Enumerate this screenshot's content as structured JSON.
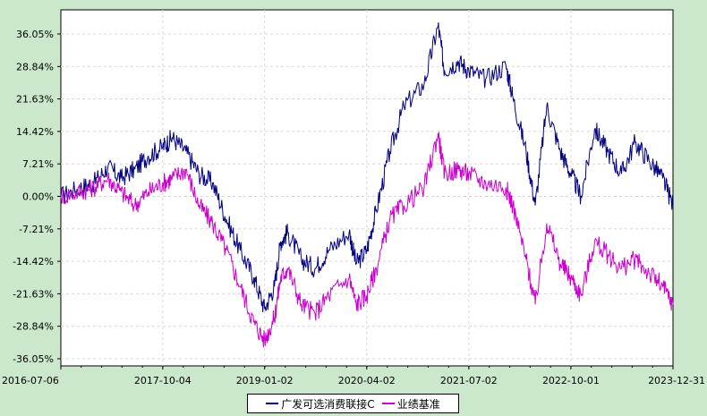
{
  "chart_data": {
    "type": "line",
    "title": "",
    "xlabel": "",
    "ylabel": "",
    "x_ticks": [
      "2016-07-06",
      "2017-10-04",
      "2019-01-02",
      "2020-04-02",
      "2021-07-02",
      "2022-10-01",
      "2023-12-31"
    ],
    "y_ticks": [
      "36.05%",
      "28.84%",
      "21.63%",
      "14.42%",
      "7.21%",
      "0.00%",
      "-7.21%",
      "-14.42%",
      "-21.63%",
      "-28.84%",
      "-36.05%"
    ],
    "ylim": [
      -36.05,
      36.05
    ],
    "xlim": [
      "2016-07-06",
      "2023-12-31"
    ],
    "grid": true,
    "legend_position": "bottom-center",
    "series": [
      {
        "name": "广发可选消费联接C",
        "color": "#000080",
        "points": [
          [
            "2016-07-06",
            0.0
          ],
          [
            "2016-10-01",
            2.0
          ],
          [
            "2016-12-01",
            3.0
          ],
          [
            "2017-02-01",
            6.5
          ],
          [
            "2017-04-01",
            4.0
          ],
          [
            "2017-06-01",
            6.0
          ],
          [
            "2017-08-01",
            9.0
          ],
          [
            "2017-10-04",
            11.0
          ],
          [
            "2017-11-15",
            13.0
          ],
          [
            "2018-01-15",
            10.0
          ],
          [
            "2018-03-15",
            5.0
          ],
          [
            "2018-05-15",
            3.0
          ],
          [
            "2018-07-15",
            -5.0
          ],
          [
            "2018-09-15",
            -12.0
          ],
          [
            "2018-11-15",
            -18.0
          ],
          [
            "2019-01-02",
            -25.0
          ],
          [
            "2019-02-15",
            -20.0
          ],
          [
            "2019-03-15",
            -10.0
          ],
          [
            "2019-04-15",
            -8.0
          ],
          [
            "2019-06-15",
            -14.0
          ],
          [
            "2019-08-15",
            -16.0
          ],
          [
            "2019-10-15",
            -12.0
          ],
          [
            "2020-01-15",
            -8.0
          ],
          [
            "2020-02-15",
            -15.0
          ],
          [
            "2020-04-02",
            -12.0
          ],
          [
            "2020-05-15",
            -3.0
          ],
          [
            "2020-07-15",
            10.0
          ],
          [
            "2020-09-15",
            20.0
          ],
          [
            "2020-12-15",
            25.0
          ],
          [
            "2021-02-15",
            38.0
          ],
          [
            "2021-03-15",
            28.0
          ],
          [
            "2021-05-15",
            30.0
          ],
          [
            "2021-07-02",
            28.0
          ],
          [
            "2021-09-15",
            26.0
          ],
          [
            "2021-12-15",
            29.0
          ],
          [
            "2022-01-15",
            22.0
          ],
          [
            "2022-03-15",
            10.0
          ],
          [
            "2022-04-25",
            -2.0
          ],
          [
            "2022-06-15",
            20.0
          ],
          [
            "2022-08-15",
            10.0
          ],
          [
            "2022-10-01",
            5.0
          ],
          [
            "2022-11-15",
            0.0
          ],
          [
            "2023-01-15",
            15.0
          ],
          [
            "2023-03-15",
            10.0
          ],
          [
            "2023-05-15",
            5.0
          ],
          [
            "2023-07-15",
            12.0
          ],
          [
            "2023-09-15",
            8.0
          ],
          [
            "2023-11-15",
            4.0
          ],
          [
            "2023-12-31",
            -2.0
          ]
        ]
      },
      {
        "name": "业绩基准",
        "color": "#cc00cc",
        "points": [
          [
            "2016-07-06",
            0.0
          ],
          [
            "2016-10-01",
            1.0
          ],
          [
            "2016-12-01",
            2.0
          ],
          [
            "2017-02-01",
            4.0
          ],
          [
            "2017-04-01",
            1.0
          ],
          [
            "2017-06-01",
            -2.0
          ],
          [
            "2017-08-01",
            1.0
          ],
          [
            "2017-10-04",
            3.0
          ],
          [
            "2017-11-15",
            4.0
          ],
          [
            "2018-01-15",
            6.0
          ],
          [
            "2018-03-15",
            -2.0
          ],
          [
            "2018-05-15",
            -6.0
          ],
          [
            "2018-07-15",
            -12.0
          ],
          [
            "2018-09-15",
            -20.0
          ],
          [
            "2018-11-15",
            -28.0
          ],
          [
            "2019-01-02",
            -32.0
          ],
          [
            "2019-02-15",
            -27.0
          ],
          [
            "2019-03-15",
            -18.0
          ],
          [
            "2019-04-15",
            -16.0
          ],
          [
            "2019-06-15",
            -24.0
          ],
          [
            "2019-08-15",
            -26.0
          ],
          [
            "2019-10-15",
            -22.0
          ],
          [
            "2020-01-15",
            -18.0
          ],
          [
            "2020-02-15",
            -24.0
          ],
          [
            "2020-04-02",
            -22.0
          ],
          [
            "2020-05-15",
            -16.0
          ],
          [
            "2020-07-15",
            -5.0
          ],
          [
            "2020-09-15",
            -2.0
          ],
          [
            "2020-12-15",
            2.0
          ],
          [
            "2021-02-15",
            14.0
          ],
          [
            "2021-03-15",
            5.0
          ],
          [
            "2021-05-15",
            6.0
          ],
          [
            "2021-07-02",
            5.0
          ],
          [
            "2021-09-15",
            3.0
          ],
          [
            "2021-12-15",
            2.0
          ],
          [
            "2022-01-15",
            -2.0
          ],
          [
            "2022-03-15",
            -14.0
          ],
          [
            "2022-04-25",
            -24.0
          ],
          [
            "2022-06-15",
            -6.0
          ],
          [
            "2022-08-15",
            -15.0
          ],
          [
            "2022-10-01",
            -18.0
          ],
          [
            "2022-11-15",
            -22.0
          ],
          [
            "2023-01-15",
            -10.0
          ],
          [
            "2023-03-15",
            -13.0
          ],
          [
            "2023-05-15",
            -16.0
          ],
          [
            "2023-07-15",
            -14.0
          ],
          [
            "2023-09-15",
            -17.0
          ],
          [
            "2023-11-15",
            -20.0
          ],
          [
            "2023-12-31",
            -24.0
          ]
        ]
      }
    ]
  }
}
